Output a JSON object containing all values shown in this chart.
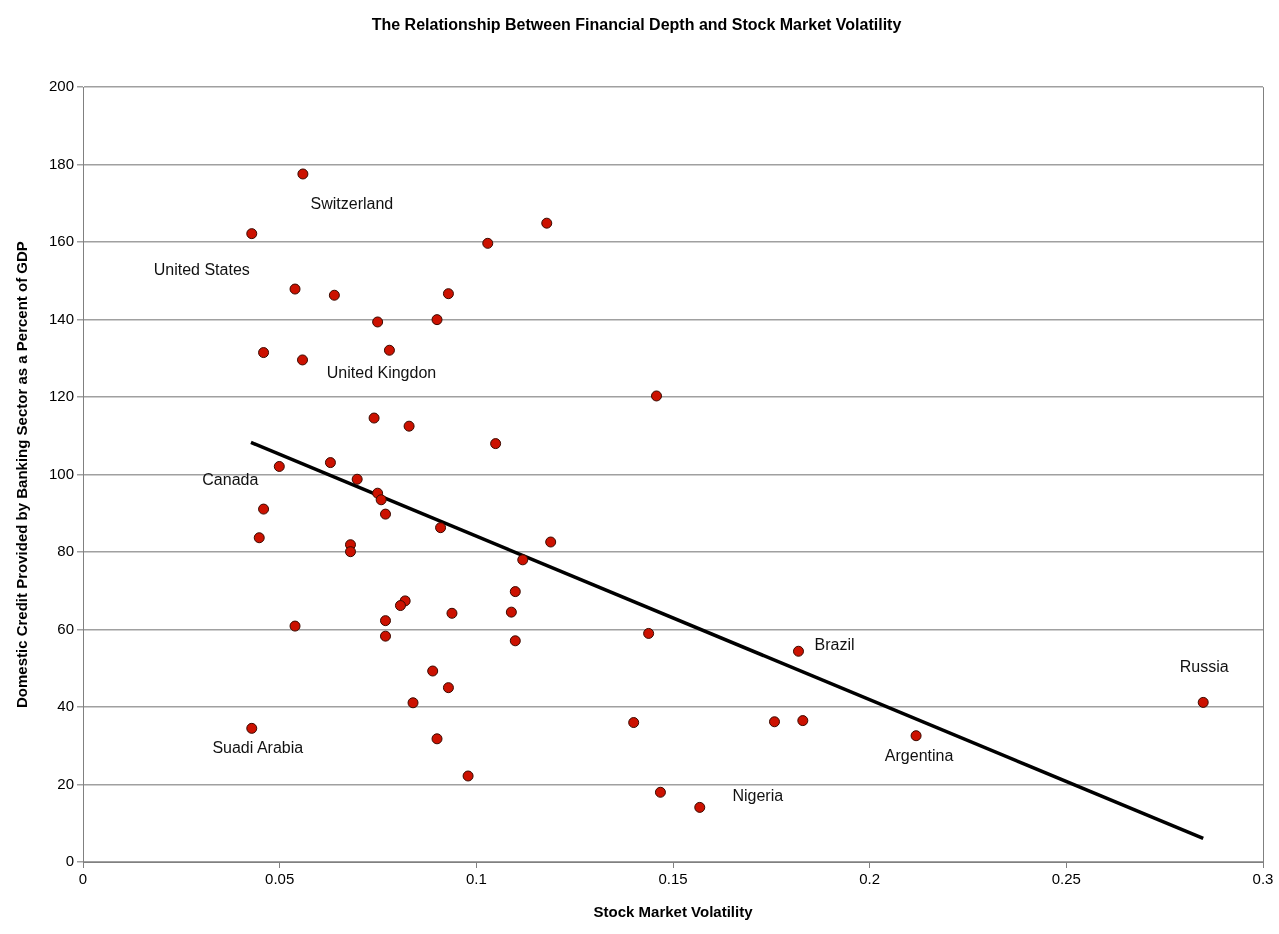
{
  "chart_data": {
    "type": "scatter",
    "title": "The Relationship Between Financial Depth and Stock Market Volatility",
    "xlabel": "Stock Market Volatility",
    "ylabel": "Domestic Credit Provided by Banking Sector as a Percent of GDP",
    "xlim": [
      0,
      0.3
    ],
    "xticks": [
      0,
      0.05,
      0.1,
      0.15,
      0.2,
      0.25,
      0.3
    ],
    "ylim": [
      0,
      200
    ],
    "yticks": [
      0,
      20,
      40,
      60,
      80,
      100,
      120,
      140,
      160,
      180,
      200
    ],
    "grid": "y",
    "legend": false,
    "marker": "circle",
    "series": [
      {
        "color": "#cc1100",
        "x": [
          0.0559,
          0.0429,
          0.1179,
          0.1029,
          0.0539,
          0.0639,
          0.0929,
          0.0749,
          0.09,
          0.0459,
          0.0558,
          0.0779,
          0.1458,
          0.074,
          0.0829,
          0.1049,
          0.0629,
          0.0499,
          0.0697,
          0.0749,
          0.0758,
          0.0769,
          0.0459,
          0.0909,
          0.0448,
          0.068,
          0.068,
          0.1189,
          0.1118,
          0.1099,
          0.0819,
          0.0807,
          0.0938,
          0.1089,
          0.0769,
          0.0539,
          0.0769,
          0.1099,
          0.1438,
          0.0889,
          0.0929,
          0.0839,
          0.0429,
          0.09,
          0.0979,
          0.14,
          0.1468,
          0.1819,
          0.1758,
          0.183,
          0.2118,
          0.2848,
          0.1568
        ],
        "values": [
          177.6,
          162.2,
          164.9,
          159.7,
          147.9,
          146.3,
          146.7,
          139.4,
          140,
          131.5,
          129.6,
          132.1,
          120.3,
          114.6,
          112.5,
          108,
          103.1,
          102.1,
          98.8,
          95.2,
          93.5,
          89.8,
          91.1,
          86.3,
          83.7,
          81.9,
          80.1,
          82.6,
          78,
          69.8,
          67.4,
          66.2,
          64.2,
          64.5,
          62.3,
          60.9,
          58.3,
          57.1,
          59,
          49.3,
          45,
          41.1,
          34.5,
          31.8,
          22.2,
          36,
          18,
          54.4,
          36.2,
          36.5,
          32.6,
          41.2,
          14.1
        ]
      },
      {
        "type": "line",
        "color": "#000000",
        "marker": "none",
        "x": [
          0.0427,
          0.2848
        ],
        "values": [
          108.3,
          6.1
        ]
      }
    ],
    "annotations": [
      {
        "text": "Switzerland",
        "x": 0.0559,
        "y": 177.6
      },
      {
        "text": "United States",
        "x": 0.0429,
        "y": 162.2
      },
      {
        "text": "United Kingdon",
        "x": 0.0558,
        "y": 129.6
      },
      {
        "text": "Canada",
        "x": 0.0499,
        "y": 102.1
      },
      {
        "text": "Suadi Arabia",
        "x": 0.0429,
        "y": 34.5
      },
      {
        "text": "Brazil",
        "x": 0.1819,
        "y": 54.4
      },
      {
        "text": "Russia",
        "x": 0.2848,
        "y": 41.2
      },
      {
        "text": "Argentina",
        "x": 0.2118,
        "y": 32.6
      },
      {
        "text": "Nigeria",
        "x": 0.1568,
        "y": 14.1
      }
    ]
  }
}
